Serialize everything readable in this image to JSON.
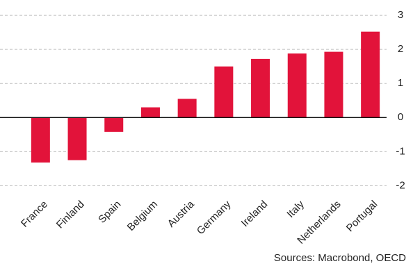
{
  "chart_data": {
    "type": "bar",
    "categories": [
      "France",
      "Finland",
      "Spain",
      "Belgium",
      "Austria",
      "Germany",
      "Ireland",
      "Italy",
      "Netherlands",
      "Portugal"
    ],
    "values": [
      -1.32,
      -1.25,
      -0.42,
      0.3,
      0.55,
      1.5,
      1.72,
      1.88,
      1.93,
      2.52
    ],
    "color": "#e2133a",
    "ylim": [
      -2.4,
      3.45
    ],
    "yticks": [
      -2,
      -1,
      0,
      1,
      2,
      3
    ],
    "grid": true,
    "source": "Sources: Macrobond, OECD"
  }
}
